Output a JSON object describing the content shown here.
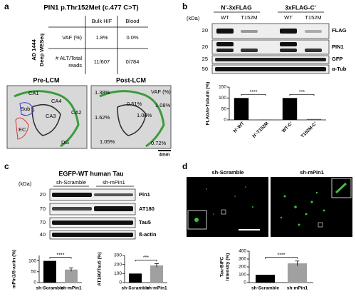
{
  "panel_labels": [
    "a",
    "b",
    "c",
    "d"
  ],
  "panel_a": {
    "title": "PIN1 p.Thr152Met (c.477 C>T)",
    "sample": [
      "AD 1444",
      "Deep WESeq"
    ],
    "table": {
      "columns": [
        "Bulk HIF",
        "Blood"
      ],
      "rows": [
        {
          "label": [
            "VAF (%)"
          ],
          "cells": [
            "1.8%",
            "0.0%"
          ]
        },
        {
          "label": [
            "# ALT/Total",
            "reads"
          ],
          "cells": [
            "11/607",
            "0/784"
          ]
        }
      ]
    },
    "pre_lcm": {
      "title": "Pre-LCM",
      "regions": [
        "CA1",
        "CA4",
        "CA3",
        "CA2",
        "Sub",
        "EC",
        "DG"
      ]
    },
    "post_lcm": {
      "title": "Post-LCM",
      "legend": "VAF (%)",
      "values": [
        "1.38%",
        "0.51%",
        "1.08%",
        "1.62%",
        "1.06%",
        "1.05%",
        "0.72%"
      ]
    },
    "scale_bar": "4mm"
  },
  "panel_b": {
    "groups": [
      "N'-3xFLAG",
      "3xFLAG-C'"
    ],
    "lanes": [
      "WT",
      "T152M",
      "WT",
      "T152M"
    ],
    "kda_label": "(kDa)",
    "blots": [
      {
        "marker": 20,
        "label": "FLAG"
      },
      {
        "marker": 20,
        "label": "PIN1"
      },
      {
        "marker": 25,
        "label": "GFP"
      },
      {
        "marker": 50,
        "label": "α-Tub"
      }
    ]
  },
  "panel_c": {
    "title": "EGFP-WT human Tau",
    "kda_label": "(kDa)",
    "groups": [
      "sh-Scramble",
      "sh-mPin1"
    ],
    "blots": [
      {
        "marker": 20,
        "label": "Pin1"
      },
      {
        "marker": 70,
        "label": "AT180"
      },
      {
        "marker": 70,
        "label": "Tau5"
      },
      {
        "marker": 40,
        "label": "ß-actin"
      }
    ]
  },
  "panel_d": {
    "images": [
      "sh-Scramble",
      "sh-mPin1"
    ]
  },
  "chart_data": [
    {
      "type": "bar",
      "ylabel": [
        "FLAG/α-Tubulin (%)"
      ],
      "categories": [
        "N'-WT",
        "N'-T152M",
        "WT-C'",
        "T152M-C'"
      ],
      "values": [
        100,
        2,
        100,
        4
      ],
      "colors": [
        "#000000",
        "#d62020",
        "#000000",
        "#d62020"
      ],
      "ylim": [
        0,
        150
      ],
      "yticks": [
        0,
        50,
        100,
        150
      ],
      "annotations": [
        "****",
        "***"
      ]
    },
    {
      "type": "bar",
      "ylabel": [
        "mPin1/ß-actin (%)"
      ],
      "categories": [
        "sh-Scramble",
        "sh-mPin1"
      ],
      "values": [
        100,
        60
      ],
      "errors": [
        null,
        8
      ],
      "colors": [
        "#000000",
        "#a0a0a0"
      ],
      "ylim": [
        0,
        125
      ],
      "yticks": [
        0,
        50,
        100
      ],
      "annotations": [
        "****"
      ]
    },
    {
      "type": "bar",
      "ylabel": [
        "AT180/Tau5 (%)"
      ],
      "categories": [
        "sh-Scramble",
        "sh-mPin1"
      ],
      "values": [
        100,
        190
      ],
      "errors": [
        null,
        20
      ],
      "colors": [
        "#000000",
        "#a0a0a0"
      ],
      "ylim": [
        0,
        300
      ],
      "yticks": [
        0,
        100,
        200,
        300
      ],
      "annotations": [
        "***"
      ]
    },
    {
      "type": "bar",
      "ylabel": [
        "Tau-BiFC",
        "Intensity (%)"
      ],
      "categories": [
        "sh-Scramble",
        "sh-mPin1"
      ],
      "values": [
        100,
        245
      ],
      "errors": [
        null,
        30
      ],
      "colors": [
        "#000000",
        "#a0a0a0"
      ],
      "ylim": [
        0,
        400
      ],
      "yticks": [
        0,
        100,
        200,
        300,
        400
      ],
      "annotations": [
        "****"
      ]
    }
  ]
}
